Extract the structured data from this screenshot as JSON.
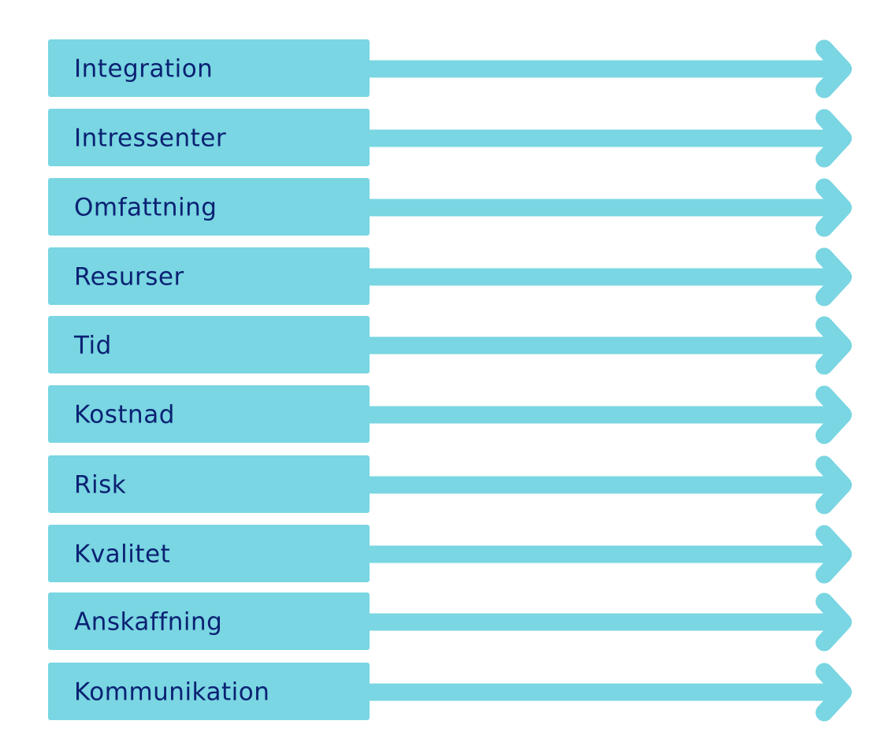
{
  "colors": {
    "box": "#79d6e2",
    "arrow": "#79d6e2",
    "text": "#0b2173",
    "background": "#ffffff"
  },
  "rows": [
    {
      "label": "Integration"
    },
    {
      "label": "Intressenter"
    },
    {
      "label": "Omfattning"
    },
    {
      "label": "Resurser"
    },
    {
      "label": "Tid"
    },
    {
      "label": "Kostnad"
    },
    {
      "label": "Risk"
    },
    {
      "label": "Kvalitet"
    },
    {
      "label": "Anskaffning"
    },
    {
      "label": "Kommunikation"
    }
  ]
}
